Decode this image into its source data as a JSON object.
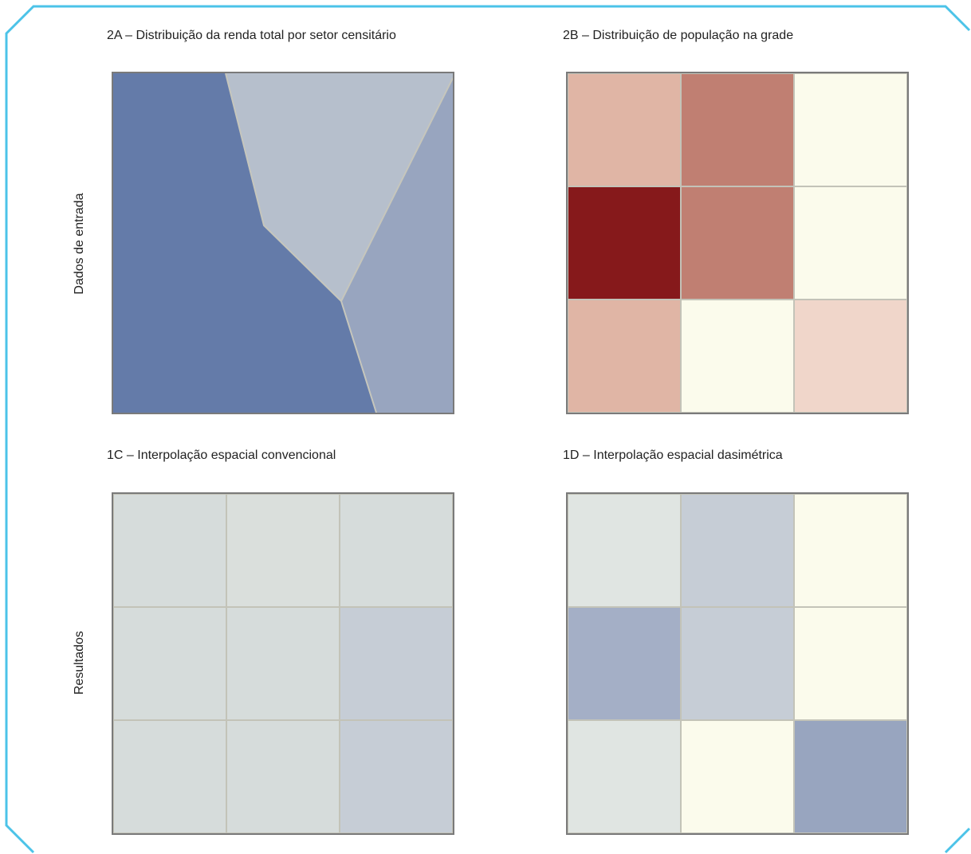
{
  "rows": {
    "input_label": "Dados de entrada",
    "result_label": "Resultados"
  },
  "panels": {
    "a": {
      "title": "2A – Distribuição da renda total por setor censitário",
      "regions": [
        {
          "id": "left",
          "color": "#647ba9"
        },
        {
          "id": "top-right",
          "color": "#b6bfcc"
        },
        {
          "id": "bottom-right",
          "color": "#98a5bf"
        }
      ],
      "border_color": "#c6c6bc"
    },
    "b": {
      "title": "2B – Distribuição de população na grade",
      "cells": [
        "#e0b5a5",
        "#c07f72",
        "#fbfbec",
        "#86191b",
        "#c07f72",
        "#fbfbec",
        "#e0b5a5",
        "#fbfbec",
        "#f0d6ca"
      ]
    },
    "c": {
      "title": "1C – Interpolação espacial convencional",
      "cells": [
        "#d6dcdb",
        "#dadfdc",
        "#d6dcdb",
        "#d6dcdb",
        "#d6dcdb",
        "#c6cdd6",
        "#d6dcdb",
        "#d6dcdb",
        "#c6cdd6"
      ]
    },
    "d": {
      "title": "1D – Interpolação espacial dasimétrica",
      "cells": [
        "#e0e5e2",
        "#c6cdd6",
        "#fbfbec",
        "#a4afc6",
        "#c6cdd6",
        "#fbfbec",
        "#e0e5e2",
        "#fbfbec",
        "#98a5bf"
      ]
    }
  },
  "frame": {
    "stroke": "#4cc3e8"
  }
}
